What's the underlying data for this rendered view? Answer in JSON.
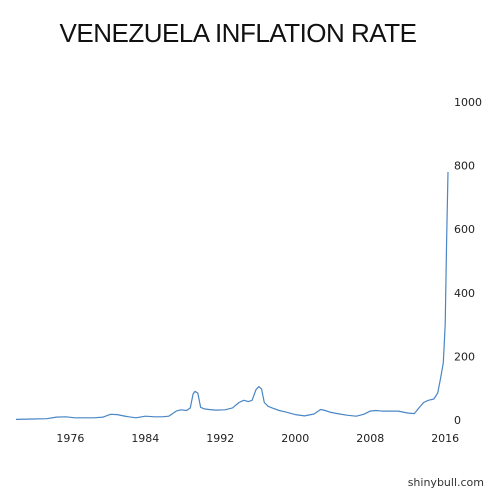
{
  "chart_data": {
    "type": "line",
    "title": "VENEZUELA INFLATION RATE",
    "xlabel": "",
    "ylabel": "",
    "xlim": [
      1970.2,
      2016.3
    ],
    "ylim": [
      0,
      1000
    ],
    "x_ticks": [
      1976,
      1984,
      1992,
      2000,
      2008,
      2016
    ],
    "y_ticks": [
      0,
      200,
      400,
      600,
      800,
      1000
    ],
    "y_axis_position": "right",
    "grid": false,
    "legend": "none",
    "line_color": "#4a86c5",
    "series": [
      {
        "name": "",
        "x": [
          1970.2,
          1972.0,
          1973.5,
          1974.5,
          1975.5,
          1976.5,
          1977.5,
          1978.5,
          1979.5,
          1980.3,
          1981.0,
          1982.0,
          1983.0,
          1984.0,
          1985.0,
          1985.8,
          1986.5,
          1987.3,
          1987.8,
          1988.4,
          1988.8,
          1989.1,
          1989.3,
          1989.6,
          1989.9,
          1990.3,
          1990.8,
          1991.5,
          1992.5,
          1993.3,
          1994.0,
          1994.5,
          1995.0,
          1995.4,
          1995.8,
          1996.1,
          1996.4,
          1996.7,
          1997.1,
          1997.6,
          1998.3,
          1999.0,
          2000.0,
          2001.0,
          2002.0,
          2002.7,
          2003.2,
          2003.8,
          2004.5,
          2005.5,
          2006.5,
          2007.3,
          2008.0,
          2008.6,
          2009.3,
          2010.0,
          2011.0,
          2012.0,
          2012.7,
          2013.2,
          2013.7,
          2014.2,
          2014.8,
          2015.2,
          2015.5,
          2015.8,
          2016.0,
          2016.15,
          2016.3
        ],
        "values": [
          2,
          3,
          4,
          9,
          10,
          7,
          7,
          7,
          9,
          18,
          17,
          11,
          7,
          12,
          10,
          10,
          12,
          28,
          32,
          30,
          38,
          82,
          90,
          85,
          40,
          35,
          33,
          31,
          32,
          38,
          55,
          62,
          58,
          62,
          95,
          105,
          98,
          55,
          43,
          37,
          30,
          25,
          17,
          13,
          19,
          33,
          30,
          24,
          20,
          15,
          12,
          18,
          28,
          30,
          28,
          28,
          28,
          22,
          20,
          38,
          55,
          62,
          66,
          85,
          130,
          180,
          300,
          560,
          780
        ]
      }
    ]
  },
  "watermark": "shinybull.com"
}
